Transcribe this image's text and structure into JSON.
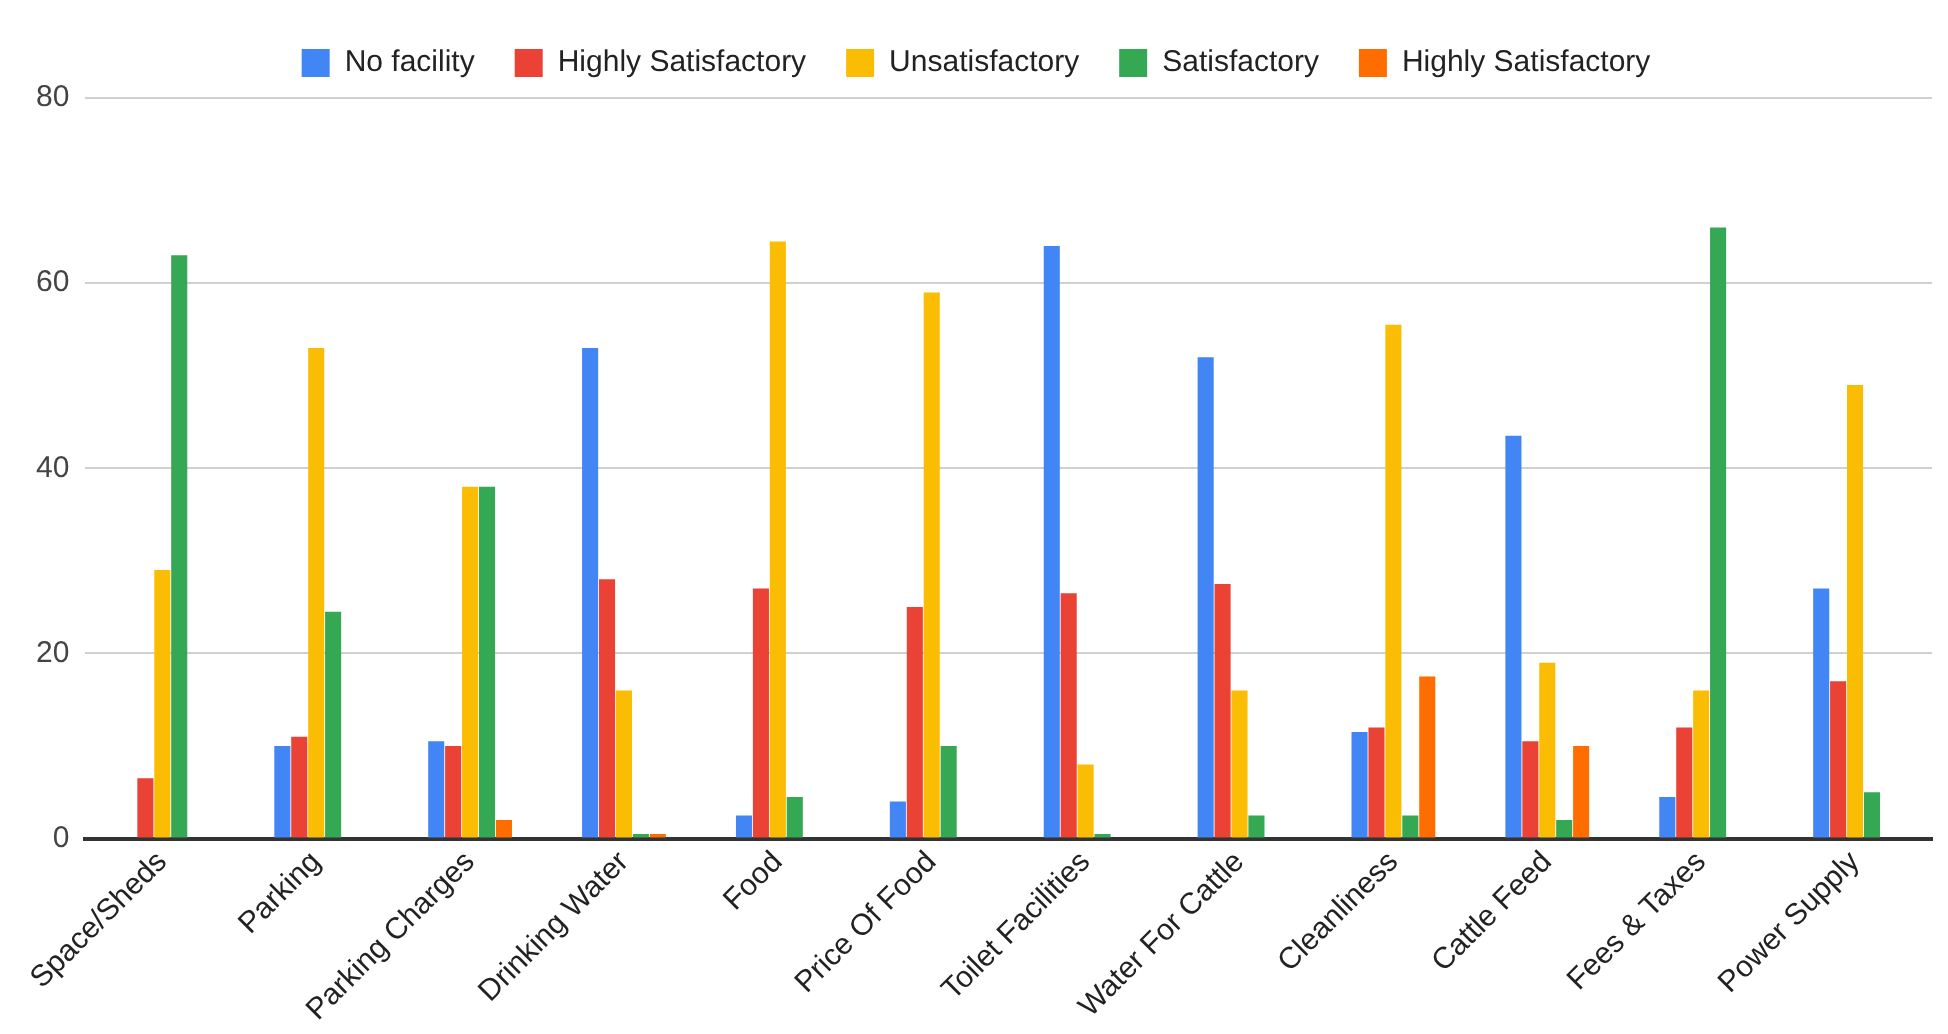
{
  "chart_data": {
    "type": "bar",
    "categories": [
      "Space/Sheds",
      "Parking",
      "Parking Charges",
      "Drinking Water",
      "Food",
      "Price Of Food",
      "Toilet Facilities",
      "Water For Cattle",
      "Cleanliness",
      "Cattle Feed",
      "Fees & Taxes",
      "Power Supply"
    ],
    "series": [
      {
        "name": "No facility",
        "color": "#4285f4",
        "values": [
          0,
          10,
          10.5,
          53,
          2.5,
          4,
          64,
          52,
          11.5,
          43.5,
          4.5,
          27
        ]
      },
      {
        "name": "Highly Satisfactory",
        "color": "#ea4335",
        "values": [
          6.5,
          11,
          10,
          28,
          27,
          25,
          26.5,
          27.5,
          12,
          10.5,
          12,
          17
        ]
      },
      {
        "name": "Unsatisfactory",
        "color": "#fbbc04",
        "values": [
          29,
          53,
          38,
          16,
          64.5,
          59,
          8,
          16,
          55.5,
          19,
          16,
          49
        ]
      },
      {
        "name": "Satisfactory",
        "color": "#34a853",
        "values": [
          63,
          24.5,
          38,
          0.5,
          4.5,
          10,
          0.5,
          2.5,
          2.5,
          2,
          66,
          5
        ]
      },
      {
        "name": "Highly Satisfactory",
        "color": "#ff6d01",
        "values": [
          0,
          0,
          2,
          0.5,
          0,
          0,
          0,
          0,
          17.5,
          10,
          0,
          0
        ]
      }
    ],
    "ylim": [
      0,
      80
    ],
    "yticks": [
      0,
      20,
      40,
      60,
      80
    ],
    "grid": "y",
    "legend": "top"
  }
}
